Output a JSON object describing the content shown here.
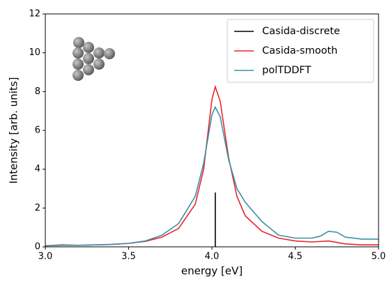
{
  "chart_data": {
    "type": "line",
    "xlabel": "energy [eV]",
    "ylabel": "Intensity [arb. units]",
    "xlim": [
      3.0,
      5.0
    ],
    "ylim": [
      0,
      12
    ],
    "xticks": [
      {
        "value": 3.0,
        "label": "3.0"
      },
      {
        "value": 3.5,
        "label": "3.5"
      },
      {
        "value": 4.0,
        "label": "4.0"
      },
      {
        "value": 4.5,
        "label": "4.5"
      },
      {
        "value": 5.0,
        "label": "5.0"
      }
    ],
    "yticks": [
      0,
      2,
      4,
      6,
      8,
      10,
      12
    ],
    "legend": "upper right",
    "series": [
      {
        "name": "Casida-discrete",
        "color": "#000000",
        "x": [
          4.02,
          4.02
        ],
        "values": [
          0,
          2.8
        ]
      },
      {
        "name": "Casida-smooth",
        "color": "#e8262a",
        "x": [
          3.0,
          3.1,
          3.2,
          3.3,
          3.4,
          3.5,
          3.6,
          3.7,
          3.8,
          3.9,
          3.95,
          4.0,
          4.02,
          4.05,
          4.1,
          4.15,
          4.2,
          4.3,
          4.4,
          4.5,
          4.6,
          4.7,
          4.8,
          4.9,
          5.0
        ],
        "values": [
          0.05,
          0.1,
          0.08,
          0.1,
          0.13,
          0.18,
          0.28,
          0.5,
          0.95,
          2.2,
          4.0,
          7.6,
          8.25,
          7.5,
          4.6,
          2.6,
          1.6,
          0.8,
          0.45,
          0.3,
          0.25,
          0.3,
          0.15,
          0.1,
          0.1
        ]
      },
      {
        "name": "polTDDFT",
        "color": "#3a8fa6",
        "x": [
          3.0,
          3.1,
          3.2,
          3.3,
          3.4,
          3.5,
          3.6,
          3.7,
          3.8,
          3.9,
          3.95,
          4.0,
          4.02,
          4.05,
          4.1,
          4.15,
          4.2,
          4.3,
          4.4,
          4.5,
          4.6,
          4.65,
          4.7,
          4.75,
          4.8,
          4.9,
          5.0
        ],
        "values": [
          0.05,
          0.08,
          0.08,
          0.1,
          0.12,
          0.18,
          0.3,
          0.6,
          1.2,
          2.6,
          4.3,
          6.8,
          7.2,
          6.7,
          4.5,
          3.0,
          2.3,
          1.3,
          0.6,
          0.45,
          0.45,
          0.55,
          0.8,
          0.75,
          0.5,
          0.4,
          0.4
        ]
      }
    ]
  }
}
